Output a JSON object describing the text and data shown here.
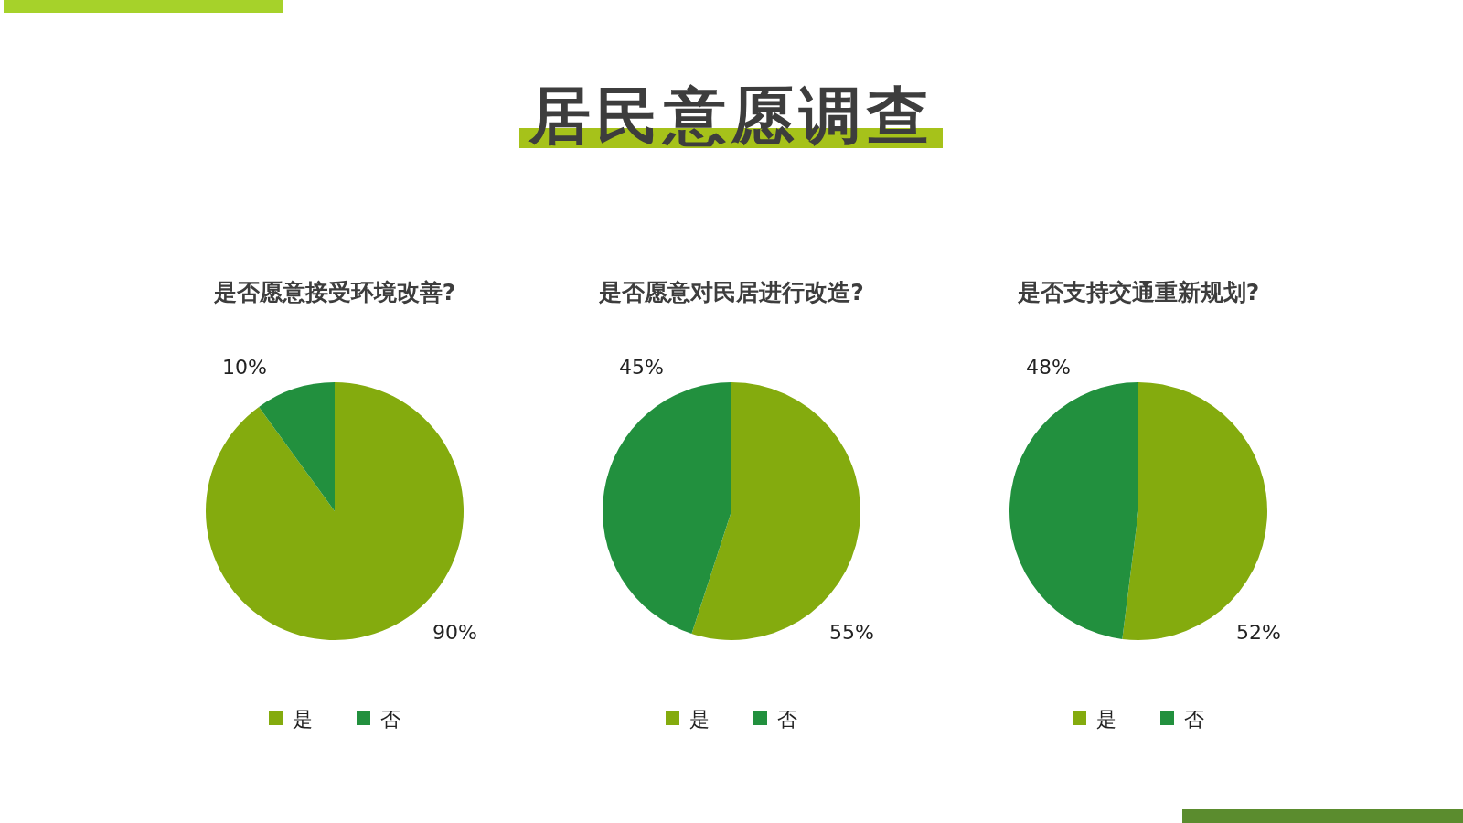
{
  "chart_data": [
    {
      "type": "pie",
      "subtitle": "是否愿意接受环境改善?",
      "categories": [
        "是",
        "否"
      ],
      "values": [
        90,
        10
      ],
      "value_labels": [
        "90%",
        "10%"
      ],
      "colors": [
        "#84ab0e",
        "#22903e"
      ],
      "legend": "bottom"
    },
    {
      "type": "pie",
      "title": "居民意愿调查",
      "subtitle": "是否愿意对民居进行改造?",
      "categories": [
        "是",
        "否"
      ],
      "values": [
        55,
        45
      ],
      "value_labels": [
        "55%",
        "45%"
      ],
      "colors": [
        "#84ab0e",
        "#22903e"
      ],
      "legend": "bottom"
    },
    {
      "type": "pie",
      "subtitle": "是否支持交通重新规划?",
      "categories": [
        "是",
        "否"
      ],
      "values": [
        52,
        48
      ],
      "value_labels": [
        "52%",
        "48%"
      ],
      "colors": [
        "#84ab0e",
        "#22903e"
      ],
      "legend": "bottom"
    }
  ]
}
